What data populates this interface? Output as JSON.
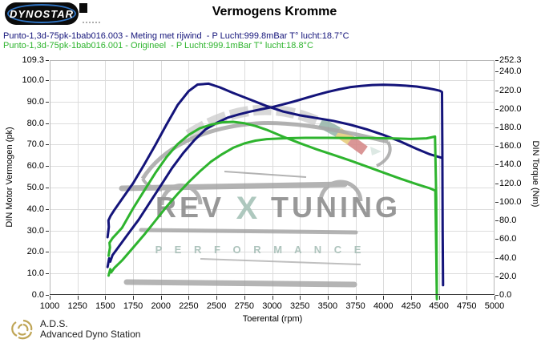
{
  "header": {
    "logo_text": "DYNOSTAR",
    "title": "Vermogens Kromme"
  },
  "legend": {
    "runs": [
      {
        "label": "Punto-1,3d-75pk-1bab016.003 - Meting met rijwind  - P Lucht:999.8mBar T° lucht:18.7°C",
        "color": "#14147a"
      },
      {
        "label": "Punto-1,3d-75pk-1bab016.001 - Origineel  - P Lucht:999.1mBar T° lucht:18.8°C",
        "color": "#2eb42e"
      }
    ]
  },
  "chart_data": {
    "type": "line",
    "title": "Vermogens Kromme",
    "grid": true,
    "x_axis": {
      "label": "Toerental (rpm)",
      "min": 1000,
      "max": 5000,
      "ticks": [
        1000,
        1250,
        1500,
        1750,
        2000,
        2250,
        2500,
        2750,
        3000,
        3250,
        3500,
        3750,
        4000,
        4250,
        4500,
        4750,
        5000
      ]
    },
    "y_left": {
      "label": "DIN Motor Vermogen (pk)",
      "min": 0,
      "max": 109.3,
      "ticks": [
        109.3,
        100,
        90,
        80,
        70,
        60,
        50,
        40,
        30,
        20,
        10,
        0
      ]
    },
    "y_right": {
      "label": "DIN Torque (Nm)",
      "min": 0,
      "max": 252.3,
      "ticks": [
        252.3,
        240,
        220,
        200,
        180,
        160,
        140,
        120,
        100,
        80,
        60,
        40,
        20,
        0
      ]
    },
    "series": [
      {
        "name": "vermogen-003-meting-met-rijwind",
        "axis": "left",
        "color": "#14147a",
        "unit": "pk",
        "points": [
          [
            1520,
            13
          ],
          [
            1535,
            17
          ],
          [
            1545,
            15.5
          ],
          [
            1565,
            18.5
          ],
          [
            1600,
            21
          ],
          [
            1700,
            28
          ],
          [
            1800,
            35
          ],
          [
            1900,
            43
          ],
          [
            2000,
            51
          ],
          [
            2100,
            59
          ],
          [
            2200,
            66
          ],
          [
            2300,
            72
          ],
          [
            2400,
            77
          ],
          [
            2500,
            80
          ],
          [
            2600,
            82.5
          ],
          [
            2700,
            84
          ],
          [
            2800,
            85.3
          ],
          [
            2900,
            86.4
          ],
          [
            3000,
            87.4
          ],
          [
            3100,
            88.7
          ],
          [
            3200,
            90.1
          ],
          [
            3300,
            91.6
          ],
          [
            3400,
            93.1
          ],
          [
            3500,
            94.5
          ],
          [
            3600,
            95.7
          ],
          [
            3700,
            96.7
          ],
          [
            3800,
            97.3
          ],
          [
            3900,
            97.7
          ],
          [
            4000,
            97.8
          ],
          [
            4100,
            97.7
          ],
          [
            4200,
            97.4
          ],
          [
            4300,
            97
          ],
          [
            4400,
            96.2
          ],
          [
            4460,
            95.6
          ],
          [
            4510,
            95
          ],
          [
            4528,
            94.4
          ],
          [
            4531,
            70
          ],
          [
            4534,
            30
          ],
          [
            4537,
            4.5
          ]
        ]
      },
      {
        "name": "koppel-003-meting-met-rijwind",
        "axis": "right",
        "color": "#14147a",
        "unit": "Nm",
        "points": [
          [
            1520,
            62
          ],
          [
            1532,
            73
          ],
          [
            1528,
            80
          ],
          [
            1548,
            85
          ],
          [
            1580,
            91
          ],
          [
            1650,
            103
          ],
          [
            1750,
            120
          ],
          [
            1850,
            140
          ],
          [
            1950,
            161
          ],
          [
            2050,
            183
          ],
          [
            2150,
            204
          ],
          [
            2250,
            219
          ],
          [
            2330,
            226
          ],
          [
            2430,
            227
          ],
          [
            2530,
            223
          ],
          [
            2650,
            217
          ],
          [
            2800,
            210
          ],
          [
            2950,
            203
          ],
          [
            3100,
            197
          ],
          [
            3250,
            193
          ],
          [
            3400,
            190
          ],
          [
            3550,
            187
          ],
          [
            3700,
            183
          ],
          [
            3850,
            178
          ],
          [
            4000,
            172
          ],
          [
            4150,
            165
          ],
          [
            4300,
            157
          ],
          [
            4420,
            151
          ],
          [
            4520,
            147.5
          ]
        ]
      },
      {
        "name": "vermogen-001-origineel",
        "axis": "left",
        "color": "#2eb42e",
        "unit": "pk",
        "points": [
          [
            1530,
            9
          ],
          [
            1545,
            12
          ],
          [
            1553,
            10.5
          ],
          [
            1580,
            12.5
          ],
          [
            1650,
            16
          ],
          [
            1750,
            22
          ],
          [
            1850,
            28
          ],
          [
            1950,
            34.5
          ],
          [
            2050,
            41
          ],
          [
            2150,
            47
          ],
          [
            2250,
            52.5
          ],
          [
            2350,
            57.5
          ],
          [
            2450,
            62
          ],
          [
            2550,
            65.5
          ],
          [
            2650,
            68.5
          ],
          [
            2750,
            70.5
          ],
          [
            2850,
            71.8
          ],
          [
            2950,
            72.5
          ],
          [
            3100,
            72.9
          ],
          [
            3300,
            73.1
          ],
          [
            3500,
            73.1
          ],
          [
            3700,
            73
          ],
          [
            3900,
            73
          ],
          [
            4100,
            72.8
          ],
          [
            4250,
            72.6
          ],
          [
            4390,
            72.9
          ],
          [
            4465,
            73.7
          ],
          [
            4476,
            45
          ],
          [
            4482,
            -2
          ]
        ]
      },
      {
        "name": "koppel-001-origineel",
        "axis": "right",
        "color": "#2eb42e",
        "unit": "Nm",
        "points": [
          [
            1530,
            42
          ],
          [
            1542,
            51
          ],
          [
            1538,
            56
          ],
          [
            1565,
            61
          ],
          [
            1650,
            72
          ],
          [
            1750,
            93
          ],
          [
            1850,
            112
          ],
          [
            1950,
            131
          ],
          [
            2050,
            148
          ],
          [
            2150,
            162
          ],
          [
            2250,
            172
          ],
          [
            2350,
            179
          ],
          [
            2450,
            183
          ],
          [
            2550,
            185.5
          ],
          [
            2650,
            186
          ],
          [
            2750,
            184.5
          ],
          [
            2850,
            181.5
          ],
          [
            2950,
            177.5
          ],
          [
            3100,
            170
          ],
          [
            3250,
            163
          ],
          [
            3400,
            156.5
          ],
          [
            3550,
            150.5
          ],
          [
            3700,
            144.5
          ],
          [
            3850,
            138
          ],
          [
            4000,
            131.5
          ],
          [
            4150,
            125
          ],
          [
            4300,
            119
          ],
          [
            4420,
            114.5
          ],
          [
            4468,
            112
          ],
          [
            4477,
            40
          ],
          [
            4481,
            -2
          ]
        ]
      }
    ]
  },
  "watermark": {
    "rev": "REV",
    "x": "X",
    "tuning": "TUNING",
    "performance": "P E R F O R M A N C E"
  },
  "footer": {
    "ads_abbr": "A.D.S.",
    "ads_full": "Advanced Dyno Station"
  }
}
